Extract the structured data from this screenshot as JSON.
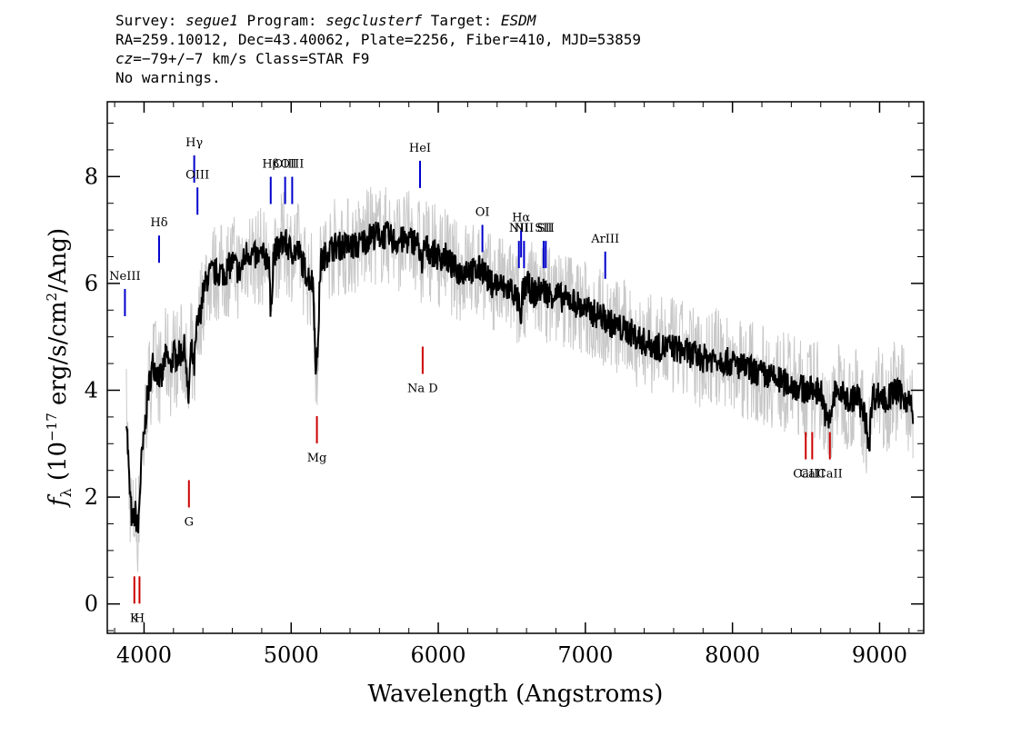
{
  "header": {
    "survey_label": "Survey: ",
    "survey": "segue1",
    "program_label": " Program: ",
    "program": "segclusterf",
    "target_label": " Target: ",
    "target": "ESDM",
    "line2": "RA=259.10012, Dec=43.40062, Plate=2256, Fiber=410, MJD=53859",
    "cz_label": "cz",
    "line3_rest": "=−79+/−7 km/s Class=STAR F9",
    "line4": "No warnings."
  },
  "chart_data": {
    "type": "line",
    "xlabel": "Wavelength (Angstroms)",
    "ylabel_parts": {
      "f": "f",
      "lambda": "λ",
      "pre": " (10",
      "exp1": "−17",
      "mid": " erg/s/cm",
      "exp2": "2",
      "post": "/Ang)"
    },
    "xlim": [
      3750,
      9300
    ],
    "ylim": [
      -0.55,
      9.4
    ],
    "x_ticks": [
      4000,
      5000,
      6000,
      7000,
      8000,
      9000
    ],
    "y_ticks": [
      0,
      2,
      4,
      6,
      8
    ],
    "grid": false,
    "series": [
      {
        "style": "black-smoothed",
        "x": [
          3880,
          3900,
          3920,
          3940,
          3960,
          3980,
          4000,
          4020,
          4040,
          4060,
          4080,
          4100,
          4120,
          4140,
          4160,
          4180,
          4200,
          4220,
          4250,
          4280,
          4300,
          4320,
          4340,
          4360,
          4380,
          4400,
          4430,
          4460,
          4500,
          4550,
          4600,
          4650,
          4700,
          4750,
          4800,
          4850,
          4860,
          4880,
          4900,
          4950,
          5000,
          5050,
          5100,
          5150,
          5170,
          5180,
          5200,
          5250,
          5300,
          5350,
          5400,
          5450,
          5500,
          5550,
          5600,
          5650,
          5700,
          5750,
          5800,
          5850,
          5880,
          5890,
          5900,
          5950,
          6000,
          6050,
          6100,
          6150,
          6200,
          6250,
          6300,
          6350,
          6400,
          6450,
          6500,
          6550,
          6560,
          6570,
          6600,
          6650,
          6700,
          6750,
          6800,
          6850,
          6900,
          6950,
          7000,
          7100,
          7200,
          7300,
          7400,
          7500,
          7600,
          7700,
          7800,
          7900,
          8000,
          8100,
          8200,
          8300,
          8400,
          8500,
          8600,
          8650,
          8700,
          8800,
          8850,
          8900,
          8930,
          8950,
          9000,
          9050,
          9100,
          9150,
          9200,
          9230
        ],
        "y": [
          3.6,
          2.2,
          1.5,
          1.7,
          1.4,
          2.6,
          3.1,
          3.8,
          4.2,
          4.5,
          4.4,
          4.3,
          4.2,
          4.6,
          4.6,
          4.4,
          4.7,
          4.6,
          4.7,
          4.8,
          3.7,
          4.8,
          4.4,
          5.2,
          5.4,
          5.8,
          6.1,
          6.2,
          6.2,
          6.2,
          6.4,
          6.2,
          6.6,
          6.5,
          6.5,
          6.5,
          5.3,
          6.6,
          6.6,
          6.8,
          6.6,
          6.6,
          6.2,
          6.0,
          4.2,
          4.8,
          6.4,
          6.6,
          6.7,
          6.7,
          6.7,
          6.7,
          6.8,
          6.9,
          6.9,
          6.9,
          6.8,
          6.8,
          6.8,
          6.8,
          6.6,
          6.0,
          6.7,
          6.6,
          6.5,
          6.5,
          6.3,
          6.2,
          6.3,
          6.2,
          6.3,
          6.0,
          6.0,
          5.9,
          5.9,
          5.6,
          5.0,
          5.8,
          6.0,
          5.8,
          5.9,
          5.8,
          5.8,
          5.7,
          5.7,
          5.6,
          5.5,
          5.4,
          5.2,
          5.1,
          4.9,
          4.8,
          4.8,
          4.7,
          4.6,
          4.6,
          4.5,
          4.4,
          4.3,
          4.2,
          4.1,
          4.0,
          4.0,
          3.3,
          4.0,
          3.8,
          3.9,
          3.5,
          3.0,
          3.9,
          3.9,
          3.8,
          4.0,
          3.9,
          3.8,
          3.5
        ]
      }
    ],
    "lines_blue": [
      {
        "label": "NeIII",
        "x": 3870,
        "y_label": 6.1
      },
      {
        "label": "Hδ",
        "x": 4102,
        "y_label": 7.1
      },
      {
        "label": "Hγ",
        "x": 4341,
        "y_label": 8.6
      },
      {
        "label": "OIII",
        "x": 4363,
        "y_label": 8.0
      },
      {
        "label": "Hβ",
        "x": 4861,
        "y_label": 8.2
      },
      {
        "label": "OIII",
        "x": 4959,
        "y_label": 8.2
      },
      {
        "label": "OIII",
        "x": 5007,
        "y_label": 8.2
      },
      {
        "label": "HeI",
        "x": 5876,
        "y_label": 8.5
      },
      {
        "label": "OI",
        "x": 6300,
        "y_label": 7.3
      },
      {
        "label": "NII",
        "x": 6548,
        "y_label": 7.0
      },
      {
        "label": "Hα",
        "x": 6563,
        "y_label": 7.2
      },
      {
        "label": "NII",
        "x": 6583,
        "y_label": 7.0
      },
      {
        "label": "SII",
        "x": 6716,
        "y_label": 7.0
      },
      {
        "label": "SII",
        "x": 6731,
        "y_label": 7.0
      },
      {
        "label": "ArIII",
        "x": 7135,
        "y_label": 6.8
      }
    ],
    "lines_red": [
      {
        "label": "K",
        "x": 3934,
        "y_label": -0.3
      },
      {
        "label": "H",
        "x": 3969,
        "y_label": -0.3
      },
      {
        "label": "G",
        "x": 4305,
        "y_label": 1.5
      },
      {
        "label": "Mg",
        "x": 5175,
        "y_label": 2.7
      },
      {
        "label": "Na D",
        "x": 5894,
        "y_label": 4.0
      },
      {
        "label": "CaII",
        "x": 8498,
        "y_label": 2.4
      },
      {
        "label": "CaII",
        "x": 8542,
        "y_label": 2.4
      },
      {
        "label": "CaII",
        "x": 8662,
        "y_label": 2.4
      }
    ],
    "colors": {
      "data": "#000000",
      "error": "#c8c8c8",
      "emission": "#0000cc",
      "absorption": "#cc0000"
    }
  }
}
